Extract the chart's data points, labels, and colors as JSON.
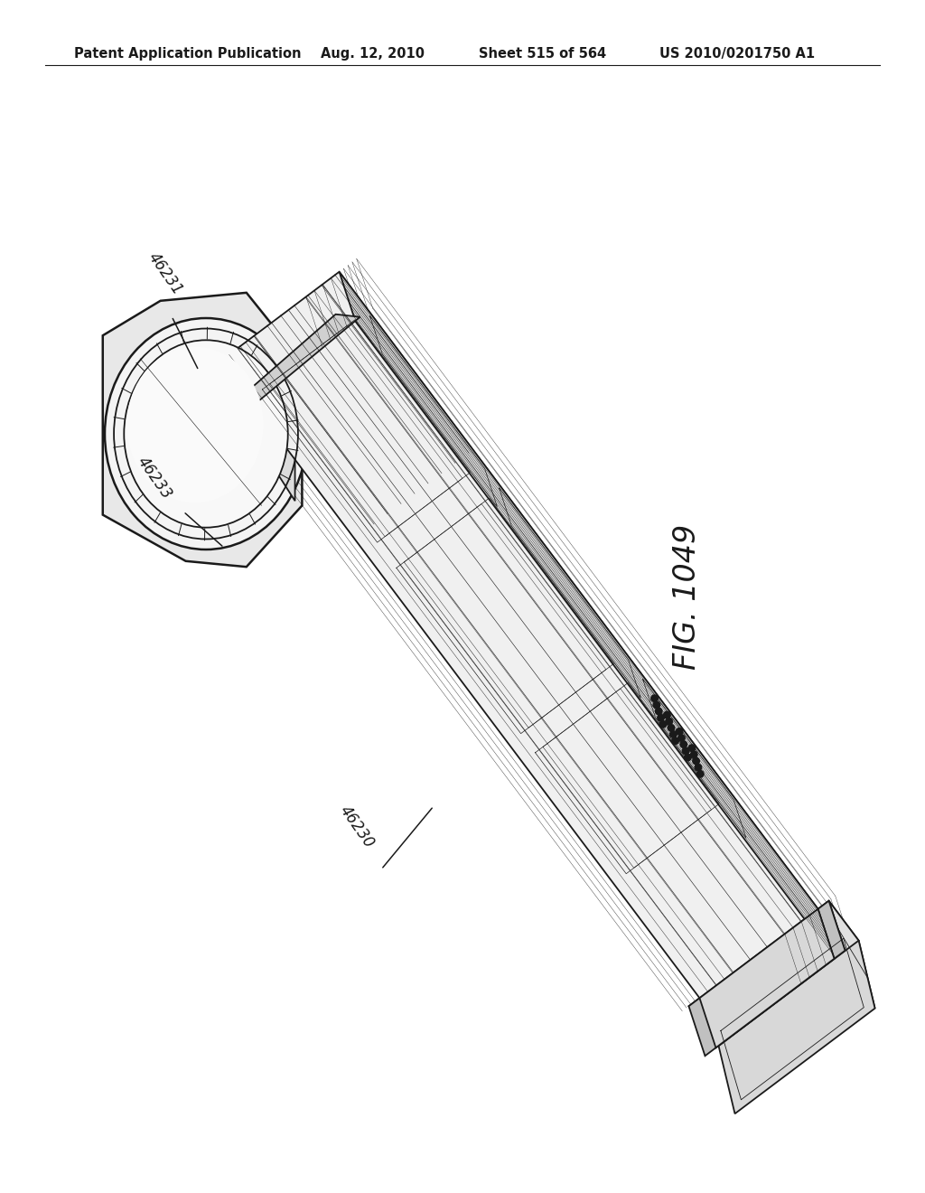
{
  "bg": "#ffffff",
  "lc": "#1a1a1a",
  "header_left": "Patent Application Publication",
  "header_mid": "Aug. 12, 2010",
  "header_sheet": "Sheet 515 of 564",
  "header_pat": "US 2010/0201750 A1",
  "fig_label": "FIG. 1049",
  "lbl_46231": "46231",
  "lbl_46233": "46233",
  "lbl_46230": "46230",
  "lw": 1.3,
  "lw_thin": 0.6,
  "lw_thick": 1.8,
  "fill_top": "#f0f0f0",
  "fill_side": "#e0e0e0",
  "fill_front": "#d8d8d8",
  "fill_dark": "#c0c0c0",
  "fill_white": "#ffffff",
  "fill_cap": "#e8e8e8"
}
